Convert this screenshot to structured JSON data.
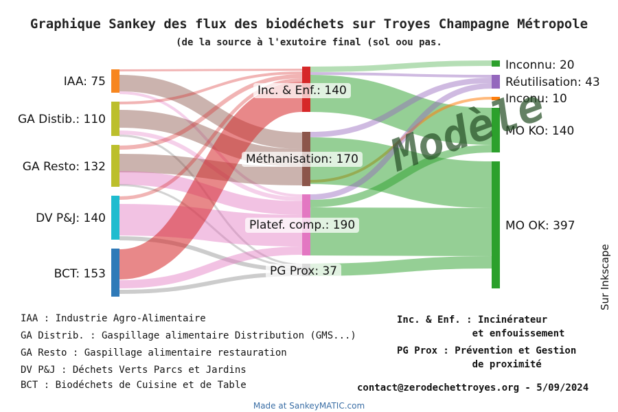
{
  "title": "Graphique Sankey des flux des biodéchets sur Troyes Champagne Métropole",
  "subtitle": "(de la source à l'exutoire final (sol oou pas.",
  "nodes": [
    {
      "id": "IAA",
      "label": "IAA: 75",
      "value": 75,
      "color": "#f7861f"
    },
    {
      "id": "GAD",
      "label": "GA Distib.: 110",
      "value": 110,
      "color": "#bcbf2c"
    },
    {
      "id": "GAR",
      "label": "GA Resto: 132",
      "value": 132,
      "color": "#bcbf2c"
    },
    {
      "id": "DV",
      "label": "DV P&J: 140",
      "value": 140,
      "color": "#1fbccf"
    },
    {
      "id": "BCT",
      "label": "BCT: 153",
      "value": 153,
      "color": "#2f7ab8"
    },
    {
      "id": "INC",
      "label": "Inc. & Enf.: 140",
      "value": 140,
      "color": "#d62728"
    },
    {
      "id": "METH",
      "label": "Méthanisation: 170",
      "value": 170,
      "color": "#8c564b"
    },
    {
      "id": "PLAT",
      "label": "Platef. comp.: 190",
      "value": 190,
      "color": "#e377c2"
    },
    {
      "id": "PG",
      "label": "PG Prox: 37",
      "value": 37,
      "color": "#7f7f7f"
    },
    {
      "id": "INCONNU",
      "label": "Inconnu: 20",
      "value": 20,
      "color": "#2ca02c"
    },
    {
      "id": "REUT",
      "label": "Réutilisation: 43",
      "value": 43,
      "color": "#9467bd"
    },
    {
      "id": "INCONU",
      "label": "Inconu: 10",
      "value": 10,
      "color": "#ff7f0e"
    },
    {
      "id": "MOKO",
      "label": "MO KO: 140",
      "value": 140,
      "color": "#2ca02c"
    },
    {
      "id": "MOOK",
      "label": "MO OK: 397",
      "value": 397,
      "color": "#2ca02c"
    }
  ],
  "legend_left": [
    "IAA : Industrie Agro-Alimentaire",
    "GA Distrib. : Gaspillage alimentaire Distribution (GMS...)",
    "GA Resto : Gaspillage alimentaire restauration",
    "DV P&J : Déchets Verts Parcs et Jardins",
    "BCT : Biodéchets de Cuisine et de Table"
  ],
  "legend_right": [
    "Inc. & Enf. : Incinérateur",
    "             et enfouissement",
    "PG Prox : Prévention et Gestion",
    "             de proximité"
  ],
  "contact": "contact@zerodechettroyes.org - 5/09/2024",
  "side_label": "Sur Inkscape",
  "watermark": "Modèle",
  "footer": "Made at SankeyMATIC.com"
}
